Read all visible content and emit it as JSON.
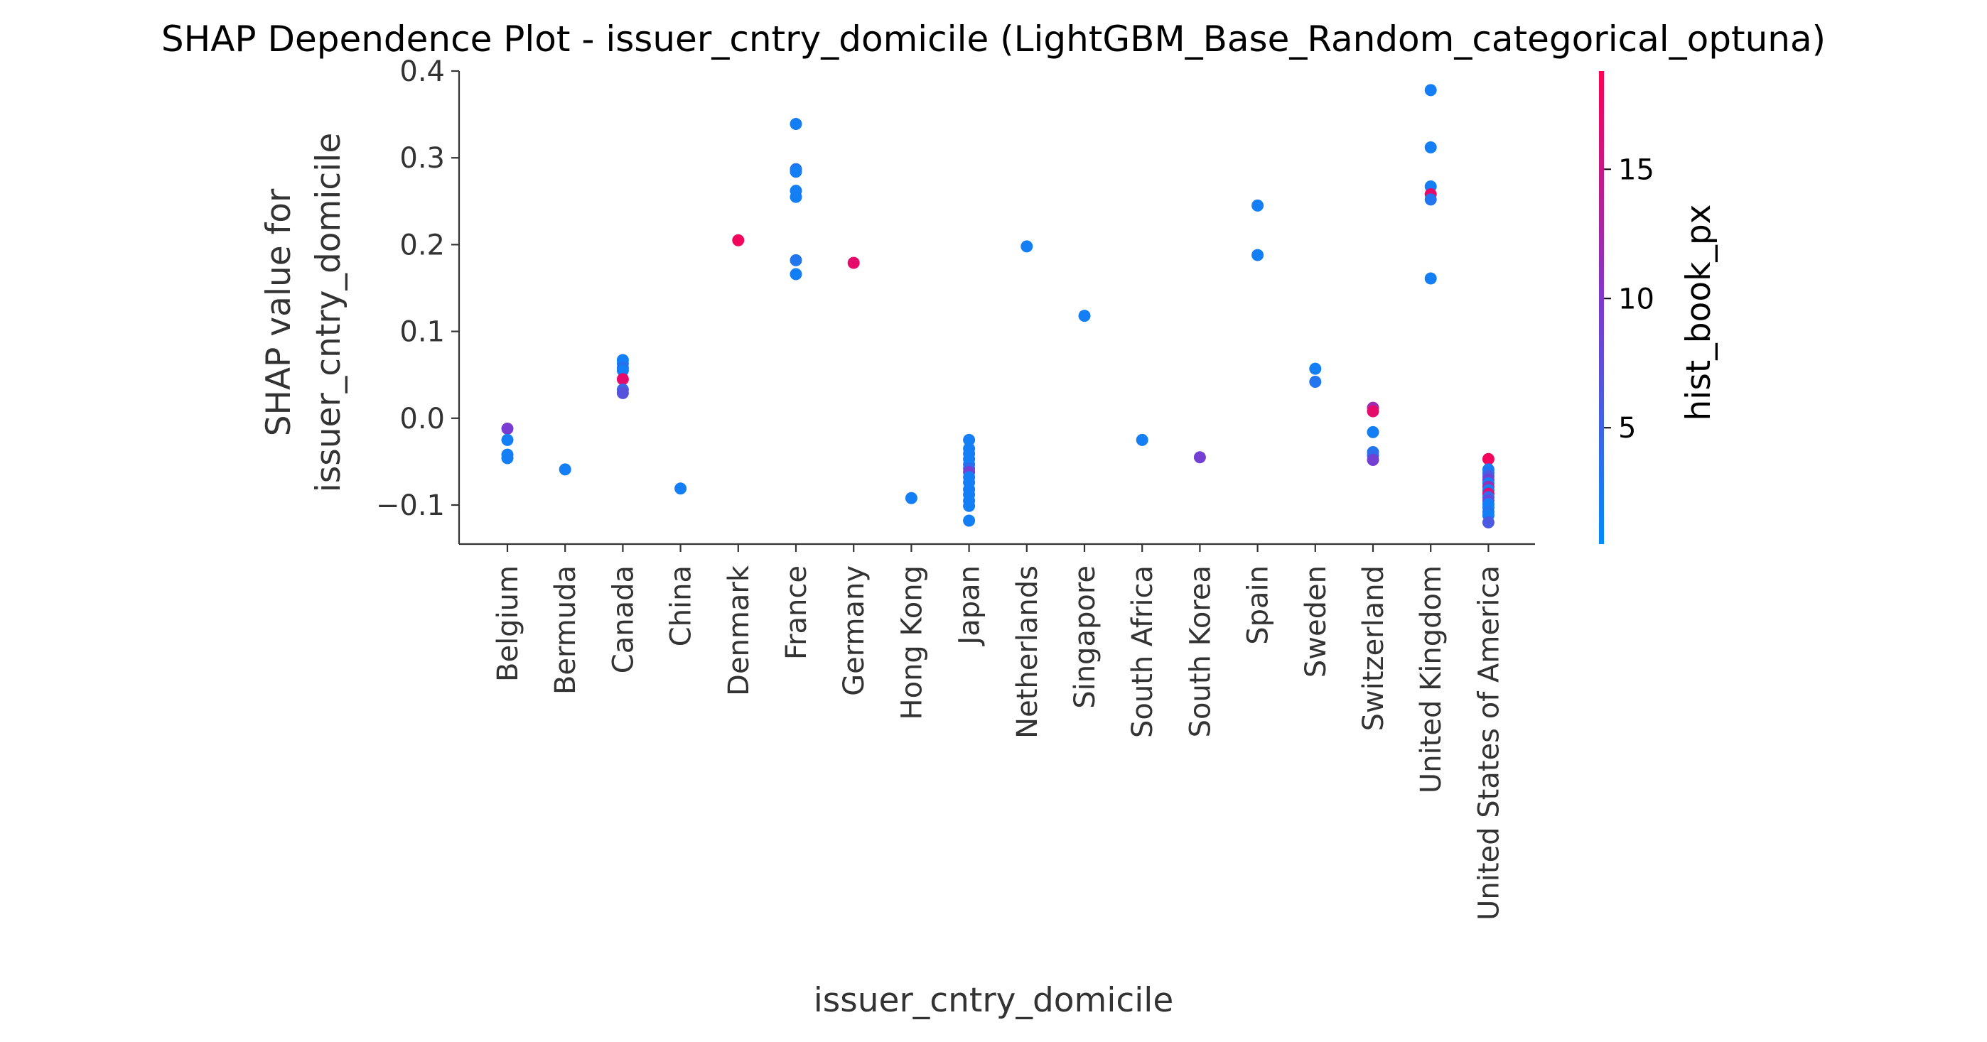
{
  "chart_data": {
    "type": "scatter",
    "title": "SHAP Dependence Plot - issuer_cntry_domicile (LightGBM_Base_Random_categorical_optuna)",
    "xlabel": "issuer_cntry_domicile",
    "ylabel_lines": [
      "SHAP value for",
      "issuer_cntry_domicile"
    ],
    "ylim": [
      -0.145,
      0.4
    ],
    "yticks": [
      -0.1,
      0.0,
      0.1,
      0.2,
      0.3,
      0.4
    ],
    "ytick_labels": [
      "−0.1",
      "0.0",
      "0.1",
      "0.2",
      "0.3",
      "0.4"
    ],
    "categories": [
      "Belgium",
      "Bermuda",
      "Canada",
      "China",
      "Denmark",
      "France",
      "Germany",
      "Hong Kong",
      "Japan",
      "Netherlands",
      "Singapore",
      "South Africa",
      "South Korea",
      "Spain",
      "Sweden",
      "Switzerland",
      "United Kingdom",
      "United States of America"
    ],
    "colorbar": {
      "label": "hist_book_px",
      "range": [
        0.5,
        18.8
      ],
      "ticks": [
        5,
        10,
        15
      ],
      "color_low": "#008bfb",
      "color_high": "#ff0052"
    },
    "points": [
      {
        "x": "Belgium",
        "y": -0.012,
        "c": 9.5
      },
      {
        "x": "Belgium",
        "y": -0.025,
        "c": 2
      },
      {
        "x": "Belgium",
        "y": -0.042,
        "c": 2
      },
      {
        "x": "Belgium",
        "y": -0.046,
        "c": 2
      },
      {
        "x": "Bermuda",
        "y": -0.059,
        "c": 2
      },
      {
        "x": "Canada",
        "y": 0.067,
        "c": 2
      },
      {
        "x": "Canada",
        "y": 0.063,
        "c": 2
      },
      {
        "x": "Canada",
        "y": 0.058,
        "c": 4
      },
      {
        "x": "Canada",
        "y": 0.055,
        "c": 2
      },
      {
        "x": "Canada",
        "y": 0.045,
        "c": 17
      },
      {
        "x": "Canada",
        "y": 0.033,
        "c": 5
      },
      {
        "x": "Canada",
        "y": 0.029,
        "c": 7
      },
      {
        "x": "China",
        "y": -0.081,
        "c": 2
      },
      {
        "x": "Denmark",
        "y": 0.205,
        "c": 18
      },
      {
        "x": "France",
        "y": 0.339,
        "c": 2
      },
      {
        "x": "France",
        "y": 0.287,
        "c": 3
      },
      {
        "x": "France",
        "y": 0.284,
        "c": 2
      },
      {
        "x": "France",
        "y": 0.262,
        "c": 2
      },
      {
        "x": "France",
        "y": 0.255,
        "c": 2
      },
      {
        "x": "France",
        "y": 0.182,
        "c": 3
      },
      {
        "x": "France",
        "y": 0.166,
        "c": 2
      },
      {
        "x": "Germany",
        "y": 0.179,
        "c": 17
      },
      {
        "x": "Hong Kong",
        "y": -0.092,
        "c": 2
      },
      {
        "x": "Japan",
        "y": -0.025,
        "c": 2
      },
      {
        "x": "Japan",
        "y": -0.035,
        "c": 2
      },
      {
        "x": "Japan",
        "y": -0.041,
        "c": 2
      },
      {
        "x": "Japan",
        "y": -0.047,
        "c": 2
      },
      {
        "x": "Japan",
        "y": -0.053,
        "c": 2
      },
      {
        "x": "Japan",
        "y": -0.058,
        "c": 4
      },
      {
        "x": "Japan",
        "y": -0.062,
        "c": 9
      },
      {
        "x": "Japan",
        "y": -0.068,
        "c": 2
      },
      {
        "x": "Japan",
        "y": -0.074,
        "c": 2
      },
      {
        "x": "Japan",
        "y": -0.082,
        "c": 2
      },
      {
        "x": "Japan",
        "y": -0.088,
        "c": 2
      },
      {
        "x": "Japan",
        "y": -0.095,
        "c": 2
      },
      {
        "x": "Japan",
        "y": -0.101,
        "c": 2
      },
      {
        "x": "Japan",
        "y": -0.118,
        "c": 2
      },
      {
        "x": "Netherlands",
        "y": 0.198,
        "c": 2
      },
      {
        "x": "Singapore",
        "y": 0.118,
        "c": 2
      },
      {
        "x": "South Africa",
        "y": -0.025,
        "c": 2
      },
      {
        "x": "South Korea",
        "y": -0.045,
        "c": 9
      },
      {
        "x": "Spain",
        "y": 0.245,
        "c": 2
      },
      {
        "x": "Spain",
        "y": 0.188,
        "c": 2
      },
      {
        "x": "Sweden",
        "y": 0.057,
        "c": 2
      },
      {
        "x": "Sweden",
        "y": 0.042,
        "c": 3
      },
      {
        "x": "Switzerland",
        "y": 0.012,
        "c": 12
      },
      {
        "x": "Switzerland",
        "y": 0.008,
        "c": 17
      },
      {
        "x": "Switzerland",
        "y": -0.016,
        "c": 2
      },
      {
        "x": "Switzerland",
        "y": -0.039,
        "c": 3
      },
      {
        "x": "Switzerland",
        "y": -0.043,
        "c": 4
      },
      {
        "x": "Switzerland",
        "y": -0.048,
        "c": 9
      },
      {
        "x": "United Kingdom",
        "y": 0.378,
        "c": 2
      },
      {
        "x": "United Kingdom",
        "y": 0.312,
        "c": 2
      },
      {
        "x": "United Kingdom",
        "y": 0.267,
        "c": 2
      },
      {
        "x": "United Kingdom",
        "y": 0.258,
        "c": 17
      },
      {
        "x": "United Kingdom",
        "y": 0.252,
        "c": 3
      },
      {
        "x": "United Kingdom",
        "y": 0.161,
        "c": 2
      },
      {
        "x": "United States of America",
        "y": -0.047,
        "c": 18
      },
      {
        "x": "United States of America",
        "y": -0.059,
        "c": 2
      },
      {
        "x": "United States of America",
        "y": -0.063,
        "c": 3
      },
      {
        "x": "United States of America",
        "y": -0.067,
        "c": 6
      },
      {
        "x": "United States of America",
        "y": -0.071,
        "c": 9
      },
      {
        "x": "United States of America",
        "y": -0.075,
        "c": 2
      },
      {
        "x": "United States of America",
        "y": -0.079,
        "c": 12
      },
      {
        "x": "United States of America",
        "y": -0.083,
        "c": 2
      },
      {
        "x": "United States of America",
        "y": -0.087,
        "c": 16
      },
      {
        "x": "United States of America",
        "y": -0.091,
        "c": 4
      },
      {
        "x": "United States of America",
        "y": -0.095,
        "c": 8
      },
      {
        "x": "United States of America",
        "y": -0.099,
        "c": 2
      },
      {
        "x": "United States of America",
        "y": -0.103,
        "c": 2
      },
      {
        "x": "United States of America",
        "y": -0.108,
        "c": 3
      },
      {
        "x": "United States of America",
        "y": -0.112,
        "c": 2
      },
      {
        "x": "United States of America",
        "y": -0.12,
        "c": 6
      }
    ]
  }
}
